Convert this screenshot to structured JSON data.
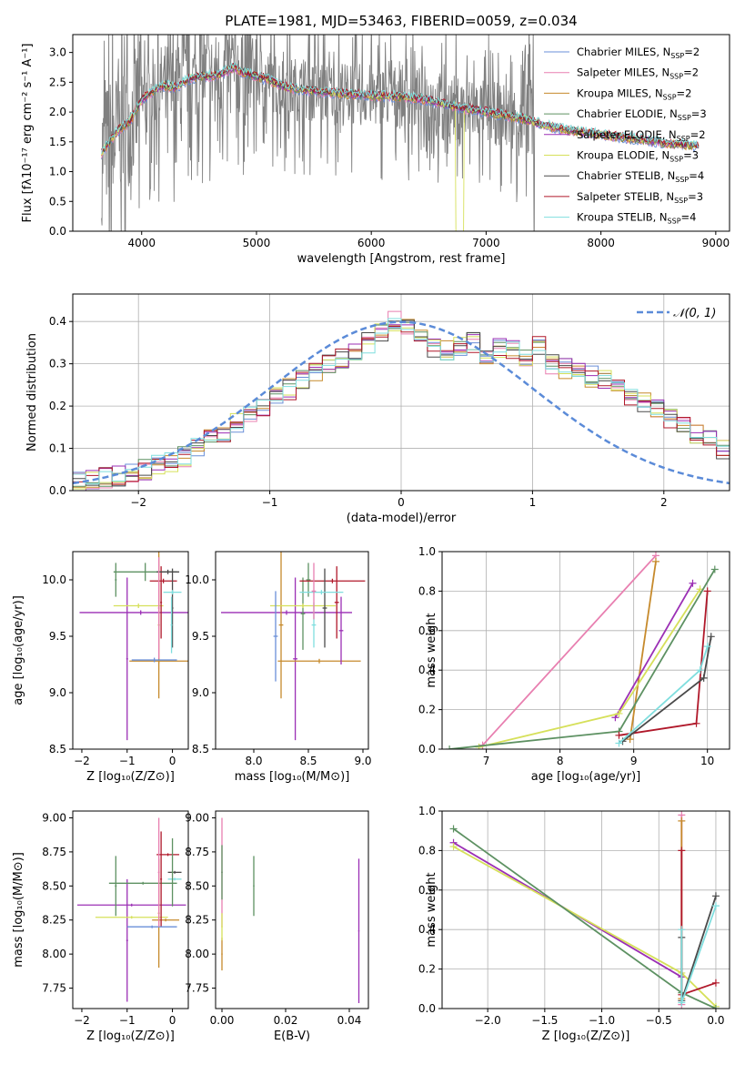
{
  "figure": {
    "colors": {
      "Chabrier MILES": "#6a8fd8",
      "Salpeter MILES": "#e87fb0",
      "Kroupa MILES": "#c68a2c",
      "Chabrier ELODIE": "#5d9162",
      "Salpeter ELODIE": "#9b2fb5",
      "Kroupa ELODIE": "#d6e05a",
      "Chabrier STELIB": "#4a4a4a",
      "Salpeter STELIB": "#b0182a",
      "Kroupa STELIB": "#7fdede",
      "data": "#808080",
      "orange": "#e8782c",
      "grid": "#b0b0b0"
    }
  },
  "chart_data": [
    {
      "id": "spectrum",
      "type": "line",
      "title": "PLATE=1981, MJD=53463, FIBERID=0059, z=0.034",
      "xlabel": "wavelength [Angstrom, rest frame]",
      "ylabel": "Flux [fλ10⁻¹⁷ erg cm⁻² s⁻¹ A⁻¹]",
      "xlim": [
        3400,
        9120
      ],
      "ylim": [
        0,
        3.3
      ],
      "xticks": [
        "4000",
        "5000",
        "6000",
        "7000",
        "8000",
        "9000"
      ],
      "yticks": [
        "0.0",
        "0.5",
        "1.0",
        "1.5",
        "2.0",
        "2.5",
        "3.0"
      ],
      "grid": false,
      "legend_position": "top-right",
      "legend": [
        {
          "label": "Chabrier MILES, N",
          "sub": "SSP",
          "suffix": "=2"
        },
        {
          "label": "Salpeter MILES, N",
          "sub": "SSP",
          "suffix": "=2"
        },
        {
          "label": "Kroupa MILES, N",
          "sub": "SSP",
          "suffix": "=2"
        },
        {
          "label": "Chabrier ELODIE, N",
          "sub": "SSP",
          "suffix": "=3"
        },
        {
          "label": "Salpeter ELODIE, N",
          "sub": "SSP",
          "suffix": "=2"
        },
        {
          "label": "Kroupa ELODIE, N",
          "sub": "SSP",
          "suffix": "=3"
        },
        {
          "label": "Chabrier STELIB, N",
          "sub": "SSP",
          "suffix": "=4"
        },
        {
          "label": "Salpeter STELIB, N",
          "sub": "SSP",
          "suffix": "=3"
        },
        {
          "label": "Kroupa STELIB, N",
          "sub": "SSP",
          "suffix": "=4"
        }
      ],
      "continuum": [
        [
          3650,
          1.3
        ],
        [
          3700,
          1.45
        ],
        [
          3800,
          1.7
        ],
        [
          3900,
          1.85
        ],
        [
          4000,
          2.2
        ],
        [
          4100,
          2.35
        ],
        [
          4200,
          2.45
        ],
        [
          4300,
          2.4
        ],
        [
          4400,
          2.55
        ],
        [
          4500,
          2.6
        ],
        [
          4600,
          2.6
        ],
        [
          4700,
          2.65
        ],
        [
          4800,
          2.75
        ],
        [
          4900,
          2.65
        ],
        [
          5000,
          2.6
        ],
        [
          5100,
          2.55
        ],
        [
          5200,
          2.45
        ],
        [
          5300,
          2.4
        ],
        [
          5500,
          2.35
        ],
        [
          5800,
          2.3
        ],
        [
          6000,
          2.28
        ],
        [
          6300,
          2.25
        ],
        [
          6500,
          2.2
        ],
        [
          6700,
          2.1
        ],
        [
          7000,
          2.0
        ],
        [
          7300,
          1.9
        ],
        [
          7500,
          1.78
        ],
        [
          7700,
          1.7
        ],
        [
          8000,
          1.62
        ],
        [
          8300,
          1.55
        ],
        [
          8600,
          1.47
        ],
        [
          8850,
          1.43
        ]
      ],
      "series_anomalies": [
        {
          "name": "Kroupa ELODIE",
          "drop": [
            6740,
            6800
          ]
        }
      ]
    },
    {
      "id": "residuals",
      "type": "histogram",
      "xlabel": "(data-model)/error",
      "ylabel": "Normed distribution",
      "xlim": [
        -2.5,
        2.5
      ],
      "ylim": [
        0,
        0.465
      ],
      "xticks": [
        "−2",
        "−1",
        "0",
        "1",
        "2"
      ],
      "yticks": [
        "0.0",
        "0.1",
        "0.2",
        "0.3",
        "0.4"
      ],
      "grid": true,
      "legend_position": "top-right",
      "legend_label": "𝒩(0, 1)",
      "bin_width": 0.1,
      "base_hist": [
        0.02,
        0.025,
        0.03,
        0.035,
        0.04,
        0.05,
        0.06,
        0.065,
        0.08,
        0.1,
        0.12,
        0.14,
        0.16,
        0.18,
        0.2,
        0.22,
        0.24,
        0.26,
        0.28,
        0.3,
        0.31,
        0.33,
        0.35,
        0.37,
        0.4,
        0.39,
        0.36,
        0.34,
        0.33,
        0.34,
        0.35,
        0.32,
        0.34,
        0.33,
        0.32,
        0.34,
        0.3,
        0.29,
        0.28,
        0.27,
        0.26,
        0.24,
        0.22,
        0.21,
        0.19,
        0.17,
        0.15,
        0.13,
        0.12,
        0.1
      ]
    },
    {
      "id": "age-vs-Z",
      "type": "errorbar",
      "xlabel": "Z [log₁₀(Z/Z⊙)]",
      "ylabel": "age  [log₁₀(age/yr)]",
      "xlim": [
        -2.2,
        0.35
      ],
      "ylim": [
        8.5,
        10.25
      ],
      "xticks": [
        "−2",
        "−1",
        "0"
      ],
      "yticks": [
        "8.5",
        "9.0",
        "9.5",
        "10.0"
      ],
      "points": [
        {
          "s": "Chabrier ELODIE",
          "x": -0.6,
          "xerr": 0.7,
          "y": 10.07,
          "yerr": 0.08
        },
        {
          "s": "Chabrier ELODIE",
          "x": -1.25,
          "xerr": 0.02,
          "y": 10.0,
          "yerr": 0.15
        },
        {
          "s": "Salpeter ELODIE",
          "x": -0.7,
          "xerr": 1.35,
          "y": 9.71,
          "yerr": 0.02
        },
        {
          "s": "Salpeter ELODIE",
          "x": -1.0,
          "xerr": 0.02,
          "y": 9.3,
          "yerr": 0.72
        },
        {
          "s": "Kroupa ELODIE",
          "x": -0.75,
          "xerr": 0.55,
          "y": 9.77,
          "yerr": 0.02
        },
        {
          "s": "Kroupa MILES",
          "x": -0.3,
          "xerr": 0.65,
          "y": 9.28,
          "yerr": 0.02
        },
        {
          "s": "Kroupa MILES",
          "x": -0.3,
          "xerr": 0.02,
          "y": 9.6,
          "yerr": 0.65
        },
        {
          "s": "Salpeter STELIB",
          "x": -0.2,
          "xerr": 0.3,
          "y": 9.99,
          "yerr": 0.02
        },
        {
          "s": "Salpeter STELIB",
          "x": -0.25,
          "xerr": 0.02,
          "y": 9.8,
          "yerr": 0.32
        },
        {
          "s": "Chabrier STELIB",
          "x": -0.1,
          "xerr": 0.25,
          "y": 10.07,
          "yerr": 0.02
        },
        {
          "s": "Chabrier STELIB",
          "x": 0.0,
          "xerr": 0.02,
          "y": 9.75,
          "yerr": 0.35
        },
        {
          "s": "Kroupa STELIB",
          "x": 0.0,
          "xerr": 0.2,
          "y": 9.89,
          "yerr": 0.02
        },
        {
          "s": "Kroupa STELIB",
          "x": -0.02,
          "xerr": 0.02,
          "y": 9.6,
          "yerr": 0.25
        },
        {
          "s": "Salpeter MILES",
          "x": -0.3,
          "xerr": 0.02,
          "y": 9.75,
          "yerr": 0.45
        },
        {
          "s": "Chabrier MILES",
          "x": -0.4,
          "xerr": 0.5,
          "y": 9.29,
          "yerr": 0.02
        }
      ]
    },
    {
      "id": "age-vs-mass",
      "type": "errorbar",
      "xlabel": "mass [log₁₀(M/M⊙)]",
      "ylabel": "",
      "xlim": [
        7.65,
        9.05
      ],
      "ylim": [
        8.5,
        10.25
      ],
      "xticks": [
        "8.0",
        "8.5",
        "9.0"
      ],
      "yticks": [
        "8.5",
        "9.0",
        "9.5",
        "10.0"
      ],
      "points": [
        {
          "s": "Salpeter ELODIE",
          "x": 8.3,
          "xerr": 0.6,
          "y": 9.71,
          "yerr": 0.02
        },
        {
          "s": "Salpeter ELODIE",
          "x": 8.38,
          "xerr": 0.02,
          "y": 9.3,
          "yerr": 0.72
        },
        {
          "s": "Kroupa MILES",
          "x": 8.6,
          "xerr": 0.38,
          "y": 9.28,
          "yerr": 0.02
        },
        {
          "s": "Kroupa MILES",
          "x": 8.25,
          "xerr": 0.02,
          "y": 9.6,
          "yerr": 0.65
        },
        {
          "s": "Chabrier ELODIE",
          "x": 8.5,
          "xerr": 0.02,
          "y": 10.0,
          "yerr": 0.15
        },
        {
          "s": "Chabrier ELODIE",
          "x": 8.45,
          "xerr": 0.02,
          "y": 9.7,
          "yerr": 0.32
        },
        {
          "s": "Salpeter STELIB",
          "x": 8.72,
          "xerr": 0.3,
          "y": 9.99,
          "yerr": 0.02
        },
        {
          "s": "Salpeter STELIB",
          "x": 8.76,
          "xerr": 0.02,
          "y": 9.8,
          "yerr": 0.32
        },
        {
          "s": "Kroupa ELODIE",
          "x": 8.45,
          "xerr": 0.3,
          "y": 9.77,
          "yerr": 0.02
        },
        {
          "s": "Chabrier STELIB",
          "x": 8.65,
          "xerr": 0.02,
          "y": 9.75,
          "yerr": 0.35
        },
        {
          "s": "Kroupa STELIB",
          "x": 8.62,
          "xerr": 0.2,
          "y": 9.89,
          "yerr": 0.02
        },
        {
          "s": "Kroupa STELIB",
          "x": 8.55,
          "xerr": 0.02,
          "y": 9.6,
          "yerr": 0.2
        },
        {
          "s": "Chabrier MILES",
          "x": 8.2,
          "xerr": 0.02,
          "y": 9.5,
          "yerr": 0.4
        },
        {
          "s": "Salpeter MILES",
          "x": 8.55,
          "xerr": 0.02,
          "y": 9.9,
          "yerr": 0.25
        },
        {
          "s": "Salpeter ELODIE",
          "x": 8.8,
          "xerr": 0.02,
          "y": 9.55,
          "yerr": 0.3
        }
      ]
    },
    {
      "id": "massweight-vs-age",
      "type": "line",
      "xlabel": "age  [log₁₀(age/yr)]",
      "ylabel": "mass weight",
      "xlim": [
        6.4,
        10.3
      ],
      "ylim": [
        0,
        1.0
      ],
      "xticks": [
        "7",
        "8",
        "9",
        "10"
      ],
      "yticks": [
        "0.0",
        "0.2",
        "0.4",
        "0.6",
        "0.8",
        "1.0"
      ],
      "grid": true,
      "series": [
        {
          "s": "Salpeter MILES",
          "pts": [
            [
              6.95,
              0.02
            ],
            [
              9.3,
              0.98
            ]
          ]
        },
        {
          "s": "Kroupa MILES",
          "pts": [
            [
              8.95,
              0.05
            ],
            [
              9.3,
              0.95
            ]
          ]
        },
        {
          "s": "Salpeter ELODIE",
          "pts": [
            [
              8.75,
              0.16
            ],
            [
              9.8,
              0.84
            ]
          ]
        },
        {
          "s": "Kroupa ELODIE",
          "pts": [
            [
              6.9,
              0.01
            ],
            [
              8.8,
              0.18
            ],
            [
              9.9,
              0.81
            ]
          ]
        },
        {
          "s": "Chabrier ELODIE",
          "pts": [
            [
              6.5,
              0.0
            ],
            [
              8.8,
              0.09
            ],
            [
              10.1,
              0.91
            ]
          ]
        },
        {
          "s": "Salpeter STELIB",
          "pts": [
            [
              8.8,
              0.07
            ],
            [
              9.85,
              0.13
            ],
            [
              10.0,
              0.8
            ]
          ]
        },
        {
          "s": "Chabrier STELIB",
          "pts": [
            [
              8.85,
              0.04
            ],
            [
              9.95,
              0.36
            ],
            [
              10.05,
              0.57
            ]
          ]
        },
        {
          "s": "Kroupa STELIB",
          "pts": [
            [
              8.8,
              0.03
            ],
            [
              9.9,
              0.4
            ],
            [
              10.0,
              0.52
            ]
          ]
        }
      ]
    },
    {
      "id": "mass-vs-Z",
      "type": "errorbar",
      "xlabel": "Z [log₁₀(Z/Z⊙)]",
      "ylabel": "mass [log₁₀(M/M⊙)]",
      "xlim": [
        -2.2,
        0.35
      ],
      "ylim": [
        7.6,
        9.05
      ],
      "xticks": [
        "−2",
        "−1",
        "0"
      ],
      "yticks": [
        "7.75",
        "8.00",
        "8.25",
        "8.50",
        "8.75",
        "9.00"
      ],
      "points": [
        {
          "s": "Salpeter ELODIE",
          "x": -0.9,
          "xerr": 1.2,
          "y": 8.36,
          "yerr": 0.01
        },
        {
          "s": "Salpeter ELODIE",
          "x": -1.0,
          "xerr": 0.02,
          "y": 8.1,
          "yerr": 0.45
        },
        {
          "s": "Kroupa ELODIE",
          "x": -0.9,
          "xerr": 0.8,
          "y": 8.27,
          "yerr": 0.01
        },
        {
          "s": "Chabrier ELODIE",
          "x": -0.65,
          "xerr": 0.75,
          "y": 8.52,
          "yerr": 0.01
        },
        {
          "s": "Chabrier ELODIE",
          "x": -1.25,
          "xerr": 0.02,
          "y": 8.5,
          "yerr": 0.22
        },
        {
          "s": "Kroupa MILES",
          "x": -0.15,
          "xerr": 0.3,
          "y": 8.25,
          "yerr": 0.01
        },
        {
          "s": "Kroupa MILES",
          "x": -0.3,
          "xerr": 0.02,
          "y": 8.3,
          "yerr": 0.4
        },
        {
          "s": "Salpeter STELIB",
          "x": -0.1,
          "xerr": 0.25,
          "y": 8.73,
          "yerr": 0.01
        },
        {
          "s": "Salpeter STELIB",
          "x": -0.25,
          "xerr": 0.02,
          "y": 8.55,
          "yerr": 0.35
        },
        {
          "s": "Chabrier STELIB",
          "x": 0.05,
          "xerr": 0.15,
          "y": 8.6,
          "yerr": 0.01
        },
        {
          "s": "Kroupa STELIB",
          "x": 0.05,
          "xerr": 0.15,
          "y": 8.55,
          "yerr": 0.01
        },
        {
          "s": "Chabrier MILES",
          "x": -0.45,
          "xerr": 0.55,
          "y": 8.2,
          "yerr": 0.01
        },
        {
          "s": "Salpeter MILES",
          "x": -0.3,
          "xerr": 0.02,
          "y": 8.6,
          "yerr": 0.4
        },
        {
          "s": "Chabrier ELODIE",
          "x": 0.0,
          "xerr": 0.02,
          "y": 8.6,
          "yerr": 0.25
        }
      ]
    },
    {
      "id": "mass-vs-ebv",
      "type": "errorbar",
      "xlabel": "E(B-V)",
      "ylabel": "",
      "xlim": [
        -0.002,
        0.046
      ],
      "ylim": [
        7.6,
        9.05
      ],
      "xticks": [
        "0.00",
        "0.02",
        "0.04"
      ],
      "yticks": [
        "7.75",
        "8.00",
        "8.25",
        "8.50",
        "8.75",
        "9.00"
      ],
      "points": [
        {
          "s": "Salpeter MILES",
          "x": 0.0,
          "xerr": 0.0002,
          "y": 8.6,
          "yerr": 0.4
        },
        {
          "s": "Kroupa MILES",
          "x": 0.0,
          "xerr": 0.0002,
          "y": 8.0,
          "yerr": 0.12
        },
        {
          "s": "Kroupa ELODIE",
          "x": 0.0,
          "xerr": 0.0002,
          "y": 8.2,
          "yerr": 0.1
        },
        {
          "s": "Chabrier ELODIE",
          "x": 0.0,
          "xerr": 0.0002,
          "y": 8.6,
          "yerr": 0.2
        },
        {
          "s": "Chabrier ELODIE",
          "x": 0.01,
          "xerr": 0.0002,
          "y": 8.5,
          "yerr": 0.22
        },
        {
          "s": "Salpeter ELODIE",
          "x": 0.043,
          "xerr": 0.0002,
          "y": 8.17,
          "yerr": 0.53
        }
      ]
    },
    {
      "id": "massweight-vs-Z",
      "type": "line",
      "xlabel": "Z [log₁₀(Z/Z⊙)]",
      "ylabel": "mass weight",
      "xlim": [
        -2.4,
        0.12
      ],
      "ylim": [
        0,
        1.0
      ],
      "xticks": [
        "−2.0",
        "−1.5",
        "−1.0",
        "−0.5",
        "0.0"
      ],
      "yticks": [
        "0.0",
        "0.2",
        "0.4",
        "0.6",
        "0.8",
        "1.0"
      ],
      "grid": true,
      "series": [
        {
          "s": "Salpeter ELODIE",
          "pts": [
            [
              -2.3,
              0.84
            ],
            [
              -0.3,
              0.16
            ]
          ]
        },
        {
          "s": "Kroupa ELODIE",
          "pts": [
            [
              -2.3,
              0.82
            ],
            [
              -0.3,
              0.18
            ],
            [
              0.0,
              0.01
            ]
          ]
        },
        {
          "s": "Chabrier ELODIE",
          "pts": [
            [
              -2.3,
              0.91
            ],
            [
              -0.3,
              0.08
            ],
            [
              0.0,
              0.0
            ]
          ]
        },
        {
          "s": "Salpeter MILES",
          "pts": [
            [
              -0.3,
              0.98
            ],
            [
              -0.3,
              0.02
            ]
          ]
        },
        {
          "s": "Kroupa MILES",
          "pts": [
            [
              -0.3,
              0.95
            ],
            [
              -0.3,
              0.05
            ]
          ]
        },
        {
          "s": "Salpeter STELIB",
          "pts": [
            [
              -0.3,
              0.8
            ],
            [
              -0.3,
              0.07
            ],
            [
              0.0,
              0.13
            ]
          ]
        },
        {
          "s": "Chabrier STELIB",
          "pts": [
            [
              -0.3,
              0.36
            ],
            [
              -0.3,
              0.04
            ],
            [
              0.0,
              0.57
            ]
          ]
        },
        {
          "s": "Kroupa STELIB",
          "pts": [
            [
              -0.3,
              0.4
            ],
            [
              -0.3,
              0.03
            ],
            [
              0.0,
              0.52
            ]
          ]
        }
      ]
    }
  ]
}
